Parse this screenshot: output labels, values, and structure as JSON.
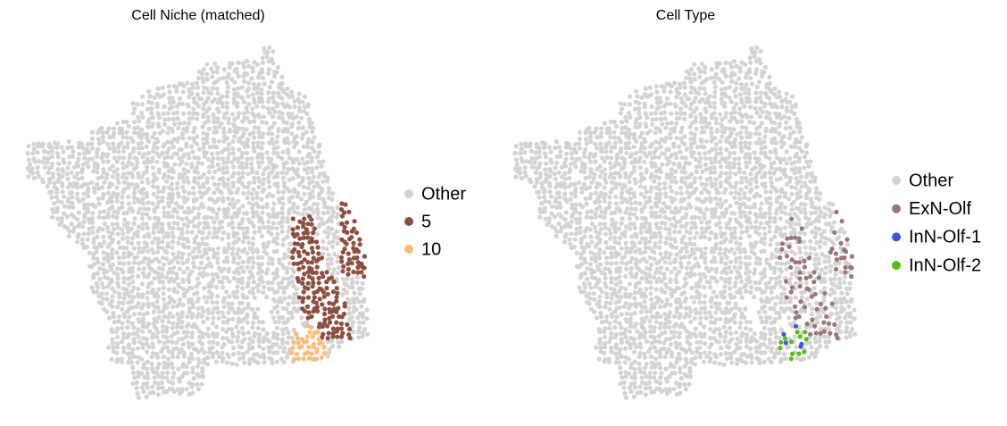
{
  "chart_data": [
    {
      "type": "scatter",
      "title": "Cell Niche (matched)",
      "legend": [
        {
          "name": "Other",
          "color": "#d3d3d3"
        },
        {
          "name": "5",
          "color": "#8c4f3e"
        },
        {
          "name": "10",
          "color": "#fdbb77"
        }
      ]
    },
    {
      "type": "scatter",
      "title": "Cell Type",
      "legend": [
        {
          "name": "Other",
          "color": "#d3d3d3"
        },
        {
          "name": "ExN-Olf",
          "color": "#9b7577"
        },
        {
          "name": "InN-Olf-1",
          "color": "#3a57e8"
        },
        {
          "name": "InN-Olf-2",
          "color": "#55c012"
        }
      ]
    }
  ]
}
